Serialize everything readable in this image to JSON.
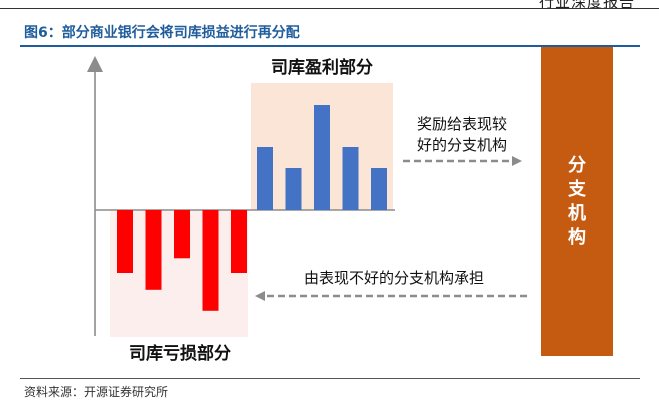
{
  "header": {
    "report_type": "行业深度报告"
  },
  "figure": {
    "title": "图6：部分商业银行会将司库损益进行再分配",
    "source": "资料来源：开源证券研究所"
  },
  "diagram": {
    "profit_label": "司库盈利部分",
    "loss_label": "司库亏损部分",
    "branch_label": [
      "分",
      "支",
      "机",
      "构"
    ],
    "arrow_top_label": [
      "奖励给表现较",
      "好的分支机构"
    ],
    "arrow_bottom_label": "由表现不好的分支机构承担",
    "profit_values": [
      3,
      2,
      5,
      3,
      2
    ],
    "loss_values": [
      -3,
      -3.8,
      -2.3,
      -4.8,
      -3
    ],
    "colors": {
      "profit_bar": "#4472c4",
      "loss_bar": "#ff0000",
      "profit_bg": "#fbe5d6",
      "loss_bg": "#fdeeee",
      "branch_box": "#c55a11",
      "arrow": "#808080"
    }
  }
}
